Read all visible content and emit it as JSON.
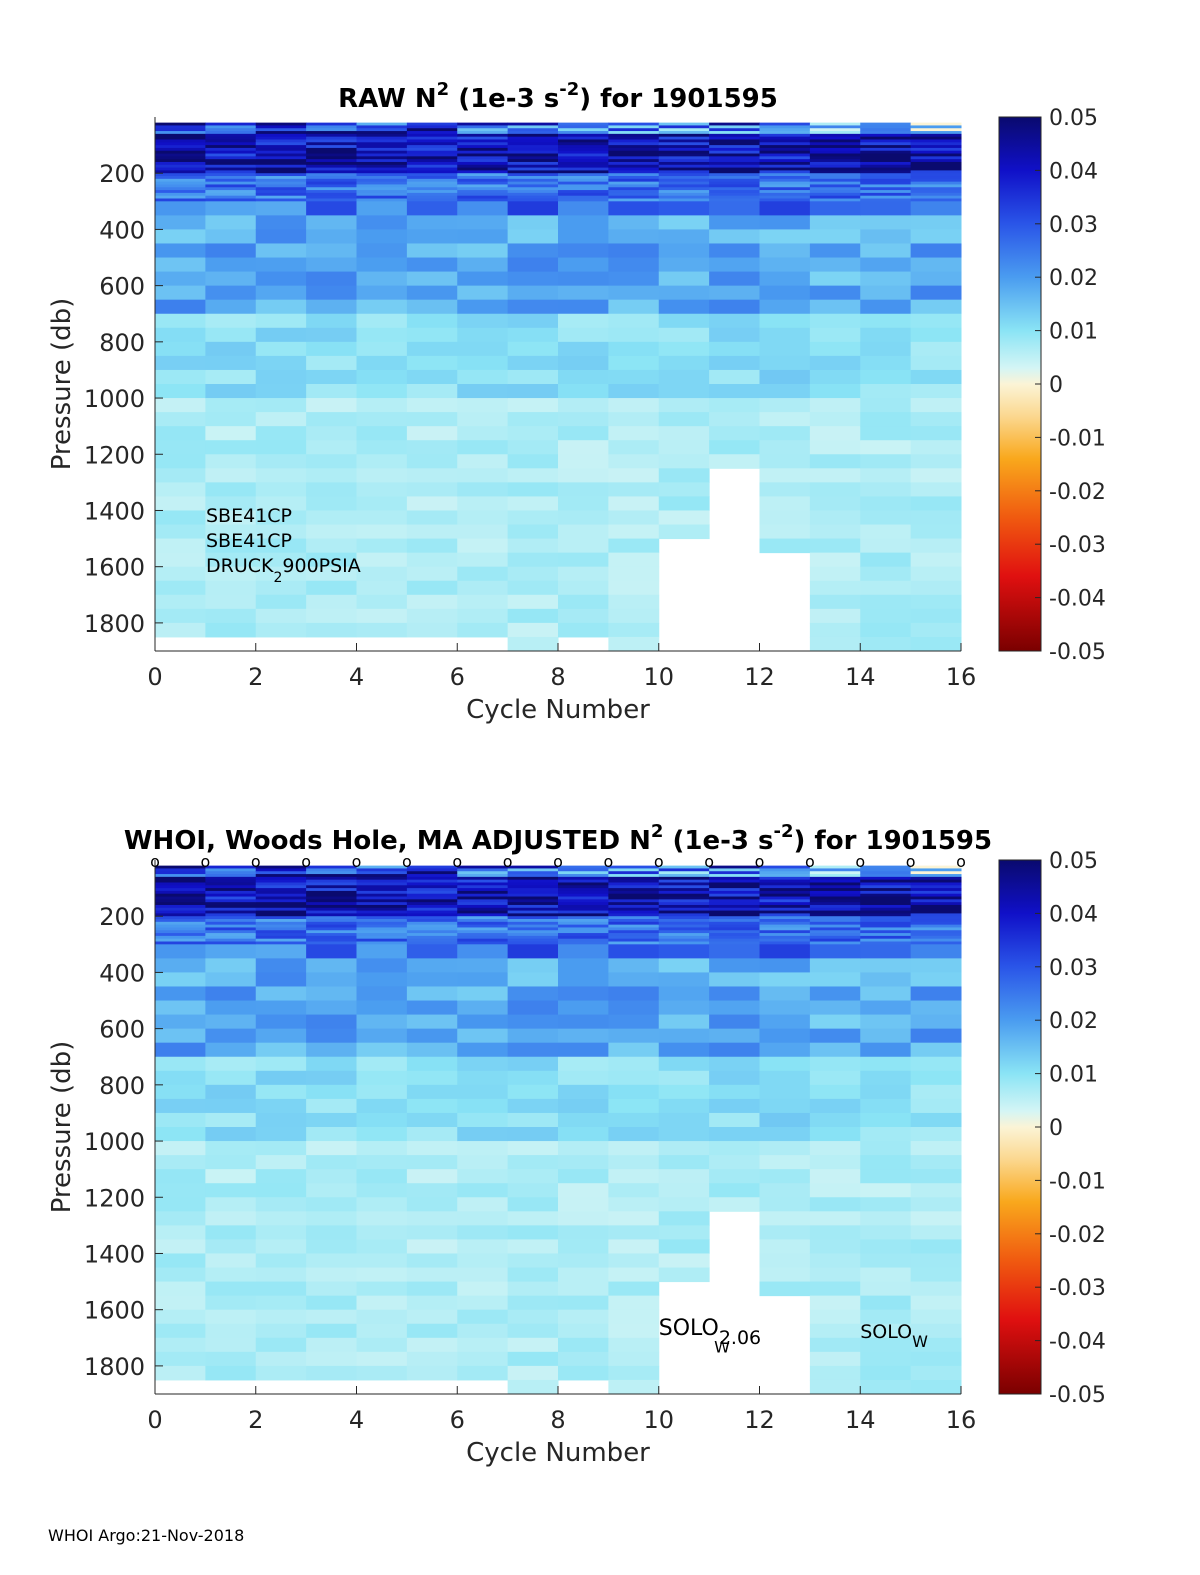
{
  "footer": "WHOI Argo:21-Nov-2018",
  "chart_data": [
    {
      "type": "heatmap",
      "title": {
        "pre": "RAW N",
        "sup1": "2",
        "mid": " (1e-3 s",
        "sup2": "-2",
        "post": ") for 1901595"
      },
      "xlabel": "Cycle Number",
      "ylabel": "Pressure (db)",
      "xlim": [
        0,
        16
      ],
      "ylim": [
        1900,
        0
      ],
      "xticks": [
        "0",
        "2",
        "4",
        "6",
        "8",
        "10",
        "12",
        "14",
        "16"
      ],
      "yticks": [
        "200",
        "400",
        "600",
        "800",
        "1000",
        "1200",
        "1400",
        "1600",
        "1800"
      ],
      "colorbar": {
        "clim": [
          -0.05,
          0.05
        ],
        "ticks": [
          "0.05",
          "0.04",
          "0.03",
          "0.02",
          "0.01",
          "0",
          "-0.01",
          "-0.02",
          "-0.03",
          "-0.04",
          "-0.05"
        ]
      },
      "profile_max_pressure": [
        1850,
        1850,
        1850,
        1850,
        1850,
        1850,
        1850,
        1900,
        1850,
        1900,
        1500,
        1250,
        1550,
        1900,
        1900,
        1900
      ],
      "sensor_text": {
        "line1": "SBE41CP",
        "line2": "SBE41CP",
        "line3_pre": "DRUCK",
        "line3_sub": "2",
        "line3_post": "900PSIA"
      }
    },
    {
      "type": "heatmap",
      "title": {
        "pre": "WHOI, Woods Hole, MA  ADJUSTED N",
        "sup1": "2",
        "mid": " (1e-3 s",
        "sup2": "-2",
        "post": ") for 1901595"
      },
      "xlabel": "Cycle Number",
      "ylabel": "Pressure (db)",
      "xlim": [
        0,
        16
      ],
      "ylim": [
        1900,
        0
      ],
      "xticks": [
        "0",
        "2",
        "4",
        "6",
        "8",
        "10",
        "12",
        "14",
        "16"
      ],
      "yticks": [
        "200",
        "400",
        "600",
        "800",
        "1000",
        "1200",
        "1400",
        "1600",
        "1800"
      ],
      "colorbar": {
        "clim": [
          -0.05,
          0.05
        ],
        "ticks": [
          "0.05",
          "0.04",
          "0.03",
          "0.02",
          "0.01",
          "0",
          "-0.01",
          "-0.02",
          "-0.03",
          "-0.04",
          "-0.05"
        ]
      },
      "profile_max_pressure": [
        1850,
        1850,
        1850,
        1850,
        1850,
        1850,
        1850,
        1900,
        1850,
        1900,
        1500,
        1250,
        1550,
        1900,
        1900,
        1900
      ],
      "cycle_markers": {
        "symbol": "o",
        "cycles": [
          0,
          1,
          2,
          3,
          4,
          5,
          6,
          7,
          8,
          9,
          10,
          11,
          12,
          13,
          14,
          15,
          16
        ]
      },
      "annotations": [
        {
          "text": "SOLO",
          "sub": "W",
          "cycle": 14,
          "pressure": 1700
        },
        {
          "text": "SOLO",
          "sub": "2.06",
          "cycle": 10,
          "pressure": 1690
        },
        {
          "text": "",
          "sub": "W",
          "cycle": 11.1,
          "pressure": 1720
        }
      ]
    }
  ]
}
